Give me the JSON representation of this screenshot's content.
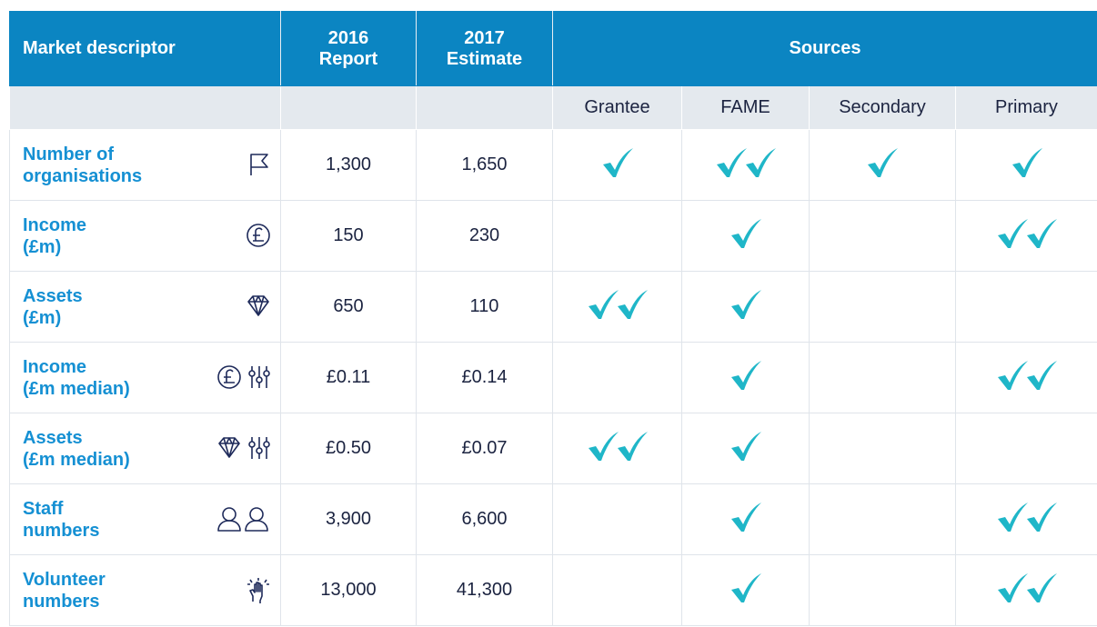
{
  "header": {
    "descriptor": "Market descriptor",
    "report2016": [
      "2016",
      "Report"
    ],
    "estimate2017": [
      "2017",
      "Estimate"
    ],
    "sources": "Sources",
    "source_names": [
      "Grantee",
      "FAME",
      "Secondary",
      "Primary"
    ]
  },
  "rows": [
    {
      "label": [
        "Number of",
        "organisations"
      ],
      "report2016": "1,300",
      "estimate2017": "1,650",
      "checks": [
        1,
        2,
        1,
        1
      ]
    },
    {
      "label": [
        "Income",
        "(£m)"
      ],
      "report2016": "150",
      "estimate2017": "230",
      "checks": [
        0,
        1,
        0,
        2
      ]
    },
    {
      "label": [
        "Assets",
        "(£m)"
      ],
      "report2016": "650",
      "estimate2017": "110",
      "checks": [
        2,
        1,
        0,
        0
      ]
    },
    {
      "label": [
        "Income",
        "(£m median)"
      ],
      "report2016": "£0.11",
      "estimate2017": "£0.14",
      "checks": [
        0,
        1,
        0,
        2
      ]
    },
    {
      "label": [
        "Assets",
        "(£m median)"
      ],
      "report2016": "£0.50",
      "estimate2017": "£0.07",
      "checks": [
        2,
        1,
        0,
        0
      ]
    },
    {
      "label": [
        "Staff",
        "numbers"
      ],
      "report2016": "3,900",
      "estimate2017": "6,600",
      "checks": [
        0,
        1,
        0,
        2
      ]
    },
    {
      "label": [
        "Volunteer",
        "numbers"
      ],
      "report2016": "13,000",
      "estimate2017": "41,300",
      "checks": [
        0,
        1,
        0,
        2
      ]
    }
  ]
}
